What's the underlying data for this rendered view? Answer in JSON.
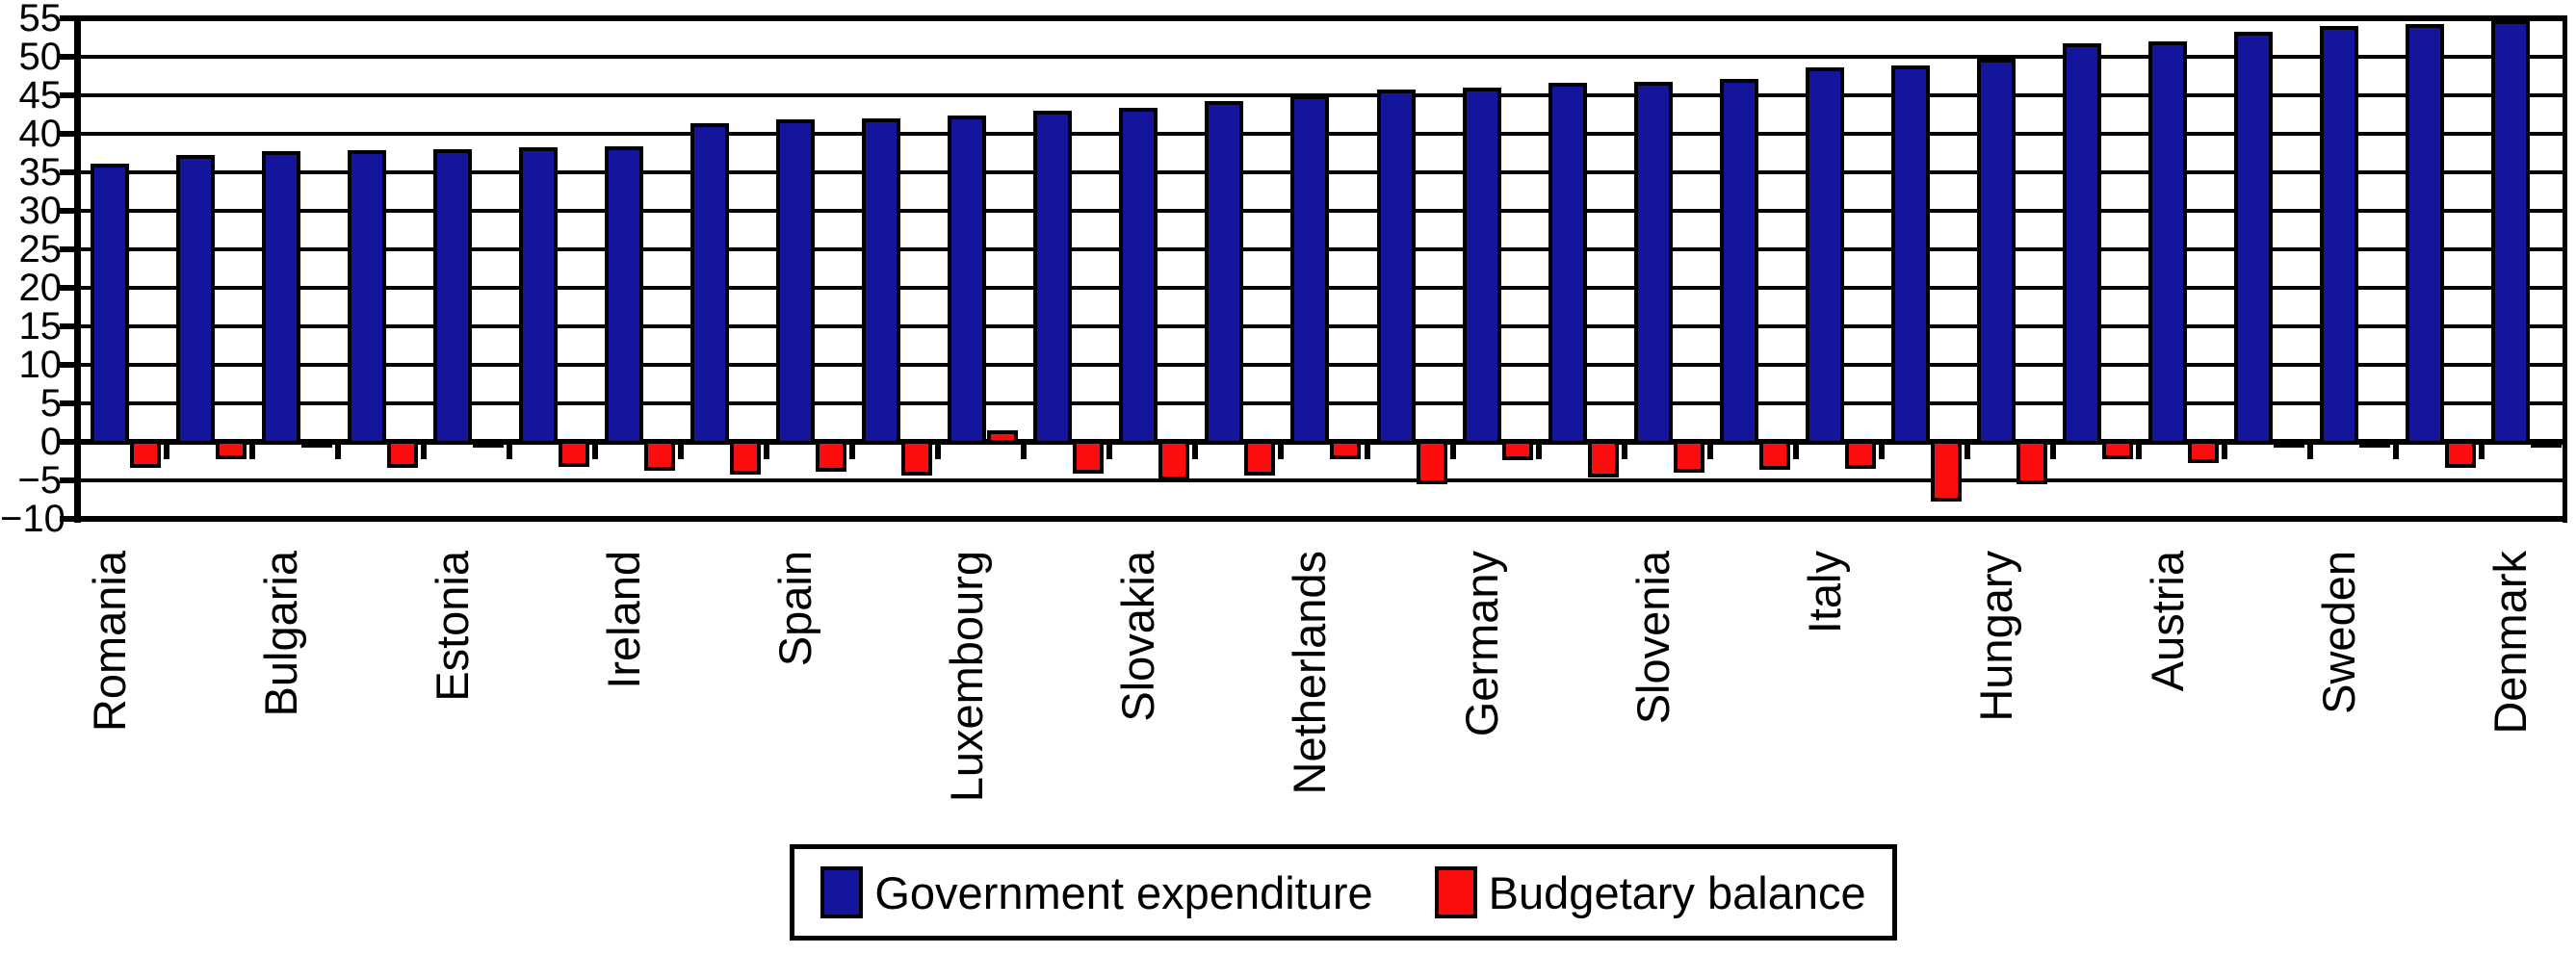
{
  "chart_data": {
    "type": "bar",
    "title": "",
    "xlabel": "",
    "ylabel": "",
    "ylim": [
      -10,
      55
    ],
    "y_tick_step": 5,
    "y_tick_values": [
      55,
      50,
      45,
      40,
      35,
      30,
      25,
      20,
      15,
      10,
      5,
      0,
      -5,
      -10
    ],
    "y_tick_labels": [
      "55",
      "50",
      "45",
      "40",
      "35",
      "30",
      "25",
      "20",
      "15",
      "10",
      "5",
      "0",
      "−5",
      "−10"
    ],
    "grid": true,
    "legend_position": "bottom-center",
    "categories": [
      "Romania",
      "",
      "Bulgaria",
      "",
      "Estonia",
      "",
      "Ireland",
      "",
      "Spain",
      "",
      "Luxembourg",
      "",
      "Slovakia",
      "",
      "Netherlands",
      "",
      "Germany",
      "",
      "Slovenia",
      "",
      "Italy",
      "",
      "Hungary",
      "",
      "Austria",
      "",
      "Sweden",
      "",
      "Denmark"
    ],
    "series": [
      {
        "name": "Government expenditure",
        "color": "#15159B",
        "values": [
          36.1,
          37.3,
          37.8,
          37.9,
          38.0,
          38.3,
          38.4,
          41.4,
          41.9,
          42.0,
          42.4,
          43.0,
          43.4,
          44.3,
          45.0,
          45.8,
          46.0,
          46.6,
          46.8,
          47.1,
          48.6,
          48.9,
          49.7,
          51.8,
          52.0,
          53.2,
          54.0,
          54.2,
          54.8
        ]
      },
      {
        "name": "Budgetary balance",
        "color": "#FA0D0D",
        "values": [
          -3.4,
          -2.3,
          -0.7,
          -3.4,
          0.2,
          -3.2,
          -3.7,
          -4.3,
          -3.9,
          -4.4,
          1.5,
          -4.1,
          -5.0,
          -4.4,
          -2.2,
          -5.5,
          -2.4,
          -4.6,
          -4.0,
          -3.6,
          -3.5,
          -7.8,
          -5.5,
          -2.2,
          -2.7,
          0.3,
          -0.5,
          -3.4,
          -0.1
        ]
      }
    ]
  },
  "colors": {
    "background": "#ffffff",
    "axis": "#000000",
    "gridline": "#000000",
    "text": "#000000",
    "expenditure_bar": "#15159B",
    "balance_bar": "#FA0D0D"
  }
}
